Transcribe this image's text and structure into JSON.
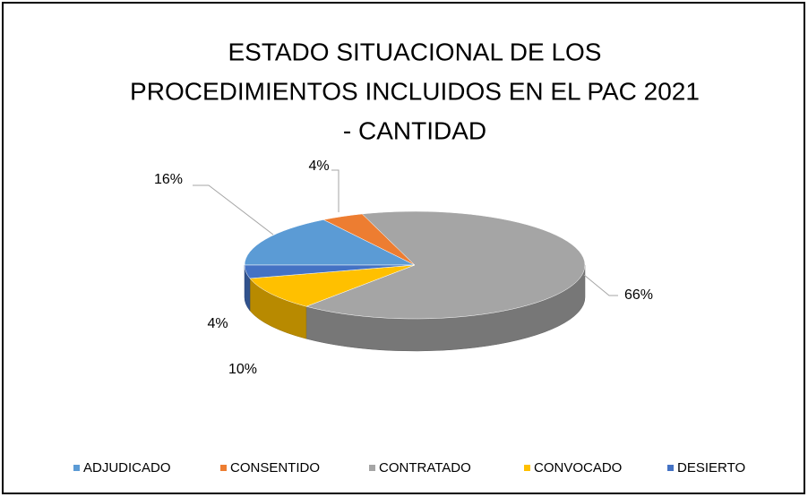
{
  "chart_data": {
    "type": "pie3d",
    "title": [
      "ESTADO SITUACIONAL DE LOS",
      "PROCEDIMIENTOS INCLUIDOS EN EL PAC 2021",
      "- CANTIDAD"
    ],
    "categories": [
      "ADJUDICADO",
      "CONSENTIDO",
      "CONTRATADO",
      "CONVOCADO",
      "DESIERTO"
    ],
    "values": [
      16,
      4,
      66,
      10,
      4
    ],
    "value_labels": [
      "16%",
      "4%",
      "66%",
      "10%",
      "4%"
    ],
    "colors": [
      "#5b9bd5",
      "#ed7d31",
      "#a5a5a5",
      "#ffc000",
      "#4472c4"
    ],
    "legend": "bottom"
  }
}
